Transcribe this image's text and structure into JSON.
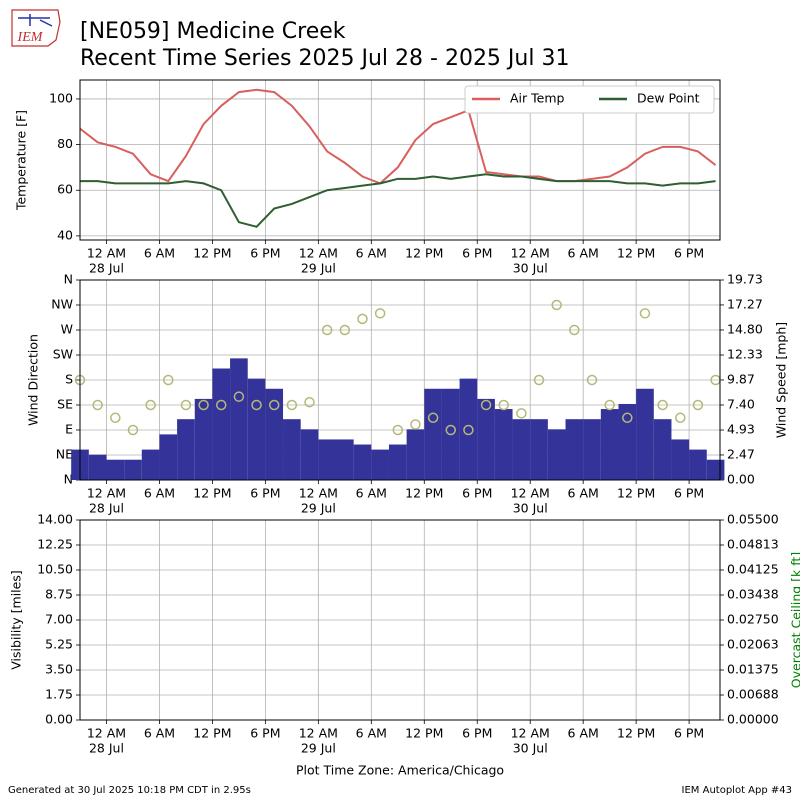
{
  "header": {
    "title": [
      "[NE059] Medicine Creek",
      "Recent Time Series 2025 Jul 28 - 2025 Jul 31"
    ],
    "logo_text": "IEM"
  },
  "footer": {
    "left": "Generated at 30 Jul 2025 10:18 PM CDT in 2.95s",
    "right": "IEM Autoplot App #43"
  },
  "chart_data": [
    {
      "type": "line",
      "ylabel": "Temperature [F]",
      "grid": true,
      "legend": "upper right",
      "xlim": [
        "2025-07-27T21:00",
        "2025-07-30T21:30"
      ],
      "xticks": [
        {
          "value": "2025-07-28T00:00",
          "label": "12 AM",
          "sublabel": "28 Jul"
        },
        {
          "value": "2025-07-28T06:00",
          "label": "6 AM"
        },
        {
          "value": "2025-07-28T12:00",
          "label": "12 PM"
        },
        {
          "value": "2025-07-28T18:00",
          "label": "6 PM"
        },
        {
          "value": "2025-07-29T00:00",
          "label": "12 AM",
          "sublabel": "29 Jul"
        },
        {
          "value": "2025-07-29T06:00",
          "label": "6 AM"
        },
        {
          "value": "2025-07-29T12:00",
          "label": "12 PM"
        },
        {
          "value": "2025-07-29T18:00",
          "label": "6 PM"
        },
        {
          "value": "2025-07-30T00:00",
          "label": "12 AM",
          "sublabel": "30 Jul"
        },
        {
          "value": "2025-07-30T06:00",
          "label": "6 AM"
        },
        {
          "value": "2025-07-30T12:00",
          "label": "12 PM"
        },
        {
          "value": "2025-07-30T18:00",
          "label": "6 PM"
        }
      ],
      "ylim": [
        38.2,
        108.3
      ],
      "yticks": [
        40,
        60,
        80,
        100
      ],
      "x": [
        "2025-07-27T21:00",
        "2025-07-27T23:00",
        "2025-07-28T01:00",
        "2025-07-28T03:00",
        "2025-07-28T05:00",
        "2025-07-28T07:00",
        "2025-07-28T09:00",
        "2025-07-28T11:00",
        "2025-07-28T13:00",
        "2025-07-28T15:00",
        "2025-07-28T17:00",
        "2025-07-28T19:00",
        "2025-07-28T21:00",
        "2025-07-28T23:00",
        "2025-07-29T01:00",
        "2025-07-29T03:00",
        "2025-07-29T05:00",
        "2025-07-29T07:00",
        "2025-07-29T09:00",
        "2025-07-29T11:00",
        "2025-07-29T13:00",
        "2025-07-29T15:00",
        "2025-07-29T17:00",
        "2025-07-29T19:00",
        "2025-07-29T21:00",
        "2025-07-29T23:00",
        "2025-07-30T01:00",
        "2025-07-30T03:00",
        "2025-07-30T05:00",
        "2025-07-30T07:00",
        "2025-07-30T09:00",
        "2025-07-30T11:00",
        "2025-07-30T13:00",
        "2025-07-30T15:00",
        "2025-07-30T17:00",
        "2025-07-30T19:00",
        "2025-07-30T21:00"
      ],
      "series": [
        {
          "name": "Air Temp",
          "color": "#d95f5f",
          "values": [
            87,
            81,
            79,
            76,
            67,
            64,
            75,
            89,
            97,
            103,
            104,
            103,
            97,
            88,
            77,
            72,
            66,
            63,
            70,
            82,
            89,
            92,
            95,
            68,
            67,
            66,
            66,
            64,
            64,
            65,
            66,
            70,
            76,
            79,
            79,
            77,
            71
          ]
        },
        {
          "name": "Dew Point",
          "color": "#2e5e31",
          "values": [
            64,
            64,
            63,
            63,
            63,
            63,
            64,
            63,
            60,
            46,
            44,
            52,
            54,
            57,
            60,
            61,
            62,
            63,
            65,
            65,
            66,
            65,
            66,
            67,
            66,
            66,
            65,
            64,
            64,
            64,
            64,
            63,
            63,
            62,
            63,
            63,
            64
          ]
        }
      ]
    },
    {
      "type": "wind",
      "ylabel": "Wind Direction",
      "y2label": "Wind Speed [mph]",
      "grid": true,
      "xlim": [
        "2025-07-27T21:00",
        "2025-07-30T21:30"
      ],
      "xticks": [
        {
          "value": "2025-07-28T00:00",
          "label": "12 AM",
          "sublabel": "28 Jul"
        },
        {
          "value": "2025-07-28T06:00",
          "label": "6 AM"
        },
        {
          "value": "2025-07-28T12:00",
          "label": "12 PM"
        },
        {
          "value": "2025-07-28T18:00",
          "label": "6 PM"
        },
        {
          "value": "2025-07-29T00:00",
          "label": "12 AM",
          "sublabel": "29 Jul"
        },
        {
          "value": "2025-07-29T06:00",
          "label": "6 AM"
        },
        {
          "value": "2025-07-29T12:00",
          "label": "12 PM"
        },
        {
          "value": "2025-07-29T18:00",
          "label": "6 PM"
        },
        {
          "value": "2025-07-30T00:00",
          "label": "12 AM",
          "sublabel": "30 Jul"
        },
        {
          "value": "2025-07-30T06:00",
          "label": "6 AM"
        },
        {
          "value": "2025-07-30T12:00",
          "label": "12 PM"
        },
        {
          "value": "2025-07-30T18:00",
          "label": "6 PM"
        }
      ],
      "ylim": [
        0,
        360
      ],
      "yticks": [
        {
          "value": 0,
          "label": "N"
        },
        {
          "value": 45,
          "label": "NE"
        },
        {
          "value": 90,
          "label": "E"
        },
        {
          "value": 135,
          "label": "SE"
        },
        {
          "value": 180,
          "label": "S"
        },
        {
          "value": 225,
          "label": "SW"
        },
        {
          "value": 270,
          "label": "W"
        },
        {
          "value": 315,
          "label": "NW"
        },
        {
          "value": 360,
          "label": "N"
        }
      ],
      "y2lim": [
        0,
        19.73
      ],
      "y2ticks": [
        {
          "value": 0,
          "label": "0.00"
        },
        {
          "value": 2.47,
          "label": "2.47"
        },
        {
          "value": 4.93,
          "label": "4.93"
        },
        {
          "value": 7.4,
          "label": "7.40"
        },
        {
          "value": 9.87,
          "label": "9.87"
        },
        {
          "value": 12.33,
          "label": "12.33"
        },
        {
          "value": 14.8,
          "label": "14.80"
        },
        {
          "value": 17.27,
          "label": "17.27"
        },
        {
          "value": 19.73,
          "label": "19.73"
        }
      ],
      "x": [
        "2025-07-27T21:00",
        "2025-07-27T23:00",
        "2025-07-28T01:00",
        "2025-07-28T03:00",
        "2025-07-28T05:00",
        "2025-07-28T07:00",
        "2025-07-28T09:00",
        "2025-07-28T11:00",
        "2025-07-28T13:00",
        "2025-07-28T15:00",
        "2025-07-28T17:00",
        "2025-07-28T19:00",
        "2025-07-28T21:00",
        "2025-07-28T23:00",
        "2025-07-29T01:00",
        "2025-07-29T03:00",
        "2025-07-29T05:00",
        "2025-07-29T07:00",
        "2025-07-29T09:00",
        "2025-07-29T11:00",
        "2025-07-29T13:00",
        "2025-07-29T15:00",
        "2025-07-29T17:00",
        "2025-07-29T19:00",
        "2025-07-29T21:00",
        "2025-07-29T23:00",
        "2025-07-30T01:00",
        "2025-07-30T03:00",
        "2025-07-30T05:00",
        "2025-07-30T07:00",
        "2025-07-30T09:00",
        "2025-07-30T11:00",
        "2025-07-30T13:00",
        "2025-07-30T15:00",
        "2025-07-30T17:00",
        "2025-07-30T19:00",
        "2025-07-30T21:00"
      ],
      "series": [
        {
          "color": "#333399",
          "axis": "y2",
          "values": [
            3,
            2.5,
            2,
            2,
            3,
            4.5,
            6,
            8,
            11,
            12,
            10,
            9,
            6,
            5,
            4,
            4,
            3.5,
            3,
            3.5,
            5,
            9,
            9,
            10,
            8,
            7,
            6,
            6,
            5,
            6,
            6,
            7,
            7.5,
            9,
            6,
            4,
            3,
            2
          ]
        },
        {
          "color": "#b5b877",
          "values": [
            180,
            135,
            112,
            90,
            135,
            180,
            135,
            135,
            135,
            150,
            135,
            135,
            135,
            140,
            270,
            270,
            290,
            300,
            90,
            100,
            112,
            90,
            90,
            135,
            135,
            120,
            180,
            315,
            270,
            180,
            135,
            112,
            300,
            135,
            112,
            135,
            180
          ]
        }
      ]
    },
    {
      "type": "empty",
      "ylabel": "Visibility [miles]",
      "y2label": "Overcast Ceiling [k ft]",
      "y2label_color": "#008000",
      "grid": true,
      "xlabel": "Plot Time Zone: America/Chicago",
      "xlim": [
        "2025-07-27T21:00",
        "2025-07-30T21:30"
      ],
      "xticks": [
        {
          "value": "2025-07-28T00:00",
          "label": "12 AM",
          "sublabel": "28 Jul"
        },
        {
          "value": "2025-07-28T06:00",
          "label": "6 AM"
        },
        {
          "value": "2025-07-28T12:00",
          "label": "12 PM"
        },
        {
          "value": "2025-07-28T18:00",
          "label": "6 PM"
        },
        {
          "value": "2025-07-29T00:00",
          "label": "12 AM",
          "sublabel": "29 Jul"
        },
        {
          "value": "2025-07-29T06:00",
          "label": "6 AM"
        },
        {
          "value": "2025-07-29T12:00",
          "label": "12 PM"
        },
        {
          "value": "2025-07-29T18:00",
          "label": "6 PM"
        },
        {
          "value": "2025-07-30T00:00",
          "label": "12 AM",
          "sublabel": "30 Jul"
        },
        {
          "value": "2025-07-30T06:00",
          "label": "6 AM"
        },
        {
          "value": "2025-07-30T12:00",
          "label": "12 PM"
        },
        {
          "value": "2025-07-30T18:00",
          "label": "6 PM"
        }
      ],
      "ylim": [
        0,
        14
      ],
      "yticks": [
        {
          "value": 0,
          "label": "0.00"
        },
        {
          "value": 1.75,
          "label": "1.75"
        },
        {
          "value": 3.5,
          "label": "3.50"
        },
        {
          "value": 5.25,
          "label": "5.25"
        },
        {
          "value": 7,
          "label": "7.00"
        },
        {
          "value": 8.75,
          "label": "8.75"
        },
        {
          "value": 10.5,
          "label": "10.50"
        },
        {
          "value": 12.25,
          "label": "12.25"
        },
        {
          "value": 14,
          "label": "14.00"
        }
      ],
      "y2lim": [
        0,
        0.055
      ],
      "y2ticks": [
        {
          "value": 0,
          "label": "0.00000"
        },
        {
          "value": 0.006875,
          "label": "0.00688"
        },
        {
          "value": 0.01375,
          "label": "0.01375"
        },
        {
          "value": 0.020625,
          "label": "0.02063"
        },
        {
          "value": 0.0275,
          "label": "0.02750"
        },
        {
          "value": 0.034375,
          "label": "0.03438"
        },
        {
          "value": 0.04125,
          "label": "0.04125"
        },
        {
          "value": 0.048125,
          "label": "0.04813"
        },
        {
          "value": 0.055,
          "label": "0.05500"
        }
      ]
    }
  ]
}
